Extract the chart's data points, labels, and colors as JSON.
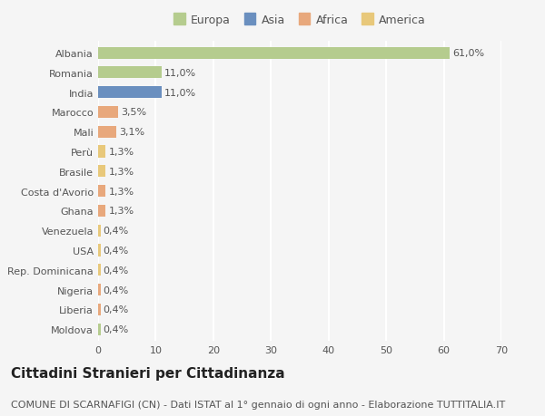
{
  "categories": [
    "Albania",
    "Romania",
    "India",
    "Marocco",
    "Mali",
    "Perù",
    "Brasile",
    "Costa d'Avorio",
    "Ghana",
    "Venezuela",
    "USA",
    "Rep. Dominicana",
    "Nigeria",
    "Liberia",
    "Moldova"
  ],
  "values": [
    61.0,
    11.0,
    11.0,
    3.5,
    3.1,
    1.3,
    1.3,
    1.3,
    1.3,
    0.4,
    0.4,
    0.4,
    0.4,
    0.4,
    0.4
  ],
  "labels": [
    "61,0%",
    "11,0%",
    "11,0%",
    "3,5%",
    "3,1%",
    "1,3%",
    "1,3%",
    "1,3%",
    "1,3%",
    "0,4%",
    "0,4%",
    "0,4%",
    "0,4%",
    "0,4%",
    "0,4%"
  ],
  "colors": [
    "#b5cc8e",
    "#b5cc8e",
    "#6a8fbf",
    "#e8a87c",
    "#e8a87c",
    "#e8c87a",
    "#e8c87a",
    "#e8a87c",
    "#e8a87c",
    "#e8c87a",
    "#e8c87a",
    "#e8c87a",
    "#e8a87c",
    "#e8a87c",
    "#b5cc8e"
  ],
  "continents": [
    "Europa",
    "Europa",
    "Asia",
    "Africa",
    "Africa",
    "America",
    "America",
    "Africa",
    "Africa",
    "America",
    "America",
    "America",
    "Africa",
    "Africa",
    "Europa"
  ],
  "legend_labels": [
    "Europa",
    "Asia",
    "Africa",
    "America"
  ],
  "legend_colors": [
    "#b5cc8e",
    "#6a8fbf",
    "#e8a87c",
    "#e8c87a"
  ],
  "title": "Cittadini Stranieri per Cittadinanza",
  "subtitle": "COMUNE DI SCARNAFIGI (CN) - Dati ISTAT al 1° gennaio di ogni anno - Elaborazione TUTTITALIA.IT",
  "xlim": [
    0,
    70
  ],
  "xticks": [
    0,
    10,
    20,
    30,
    40,
    50,
    60,
    70
  ],
  "background_color": "#f5f5f5",
  "bar_height": 0.6,
  "title_fontsize": 11,
  "subtitle_fontsize": 8,
  "label_fontsize": 8,
  "tick_fontsize": 8,
  "legend_fontsize": 9
}
